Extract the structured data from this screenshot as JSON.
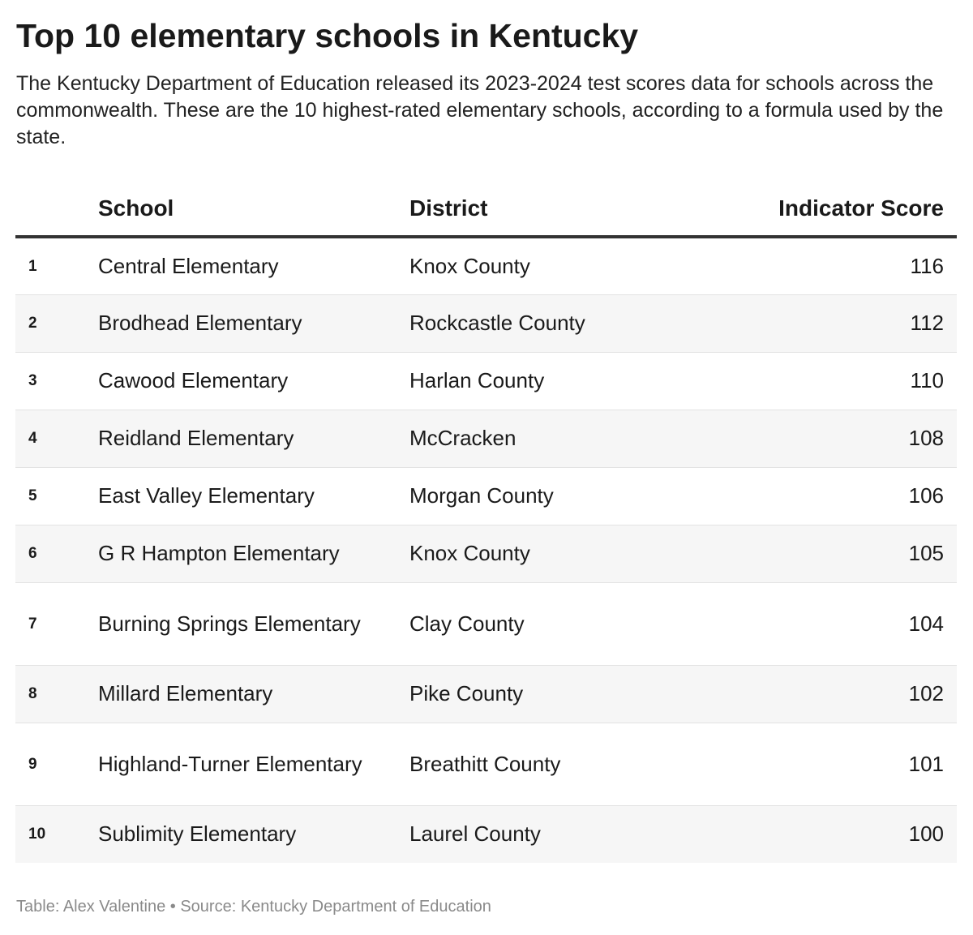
{
  "title": "Top 10 elementary schools in Kentucky",
  "subtitle": "The Kentucky Department of Education released its 2023-2024 test scores data for schools across the commonwealth. These are the 10 highest-rated elementary schools, according to a formula used by the state.",
  "footer": {
    "credit": "Table: Alex Valentine",
    "separator": "•",
    "source": "Source: Kentucky Department of Education"
  },
  "colors": {
    "text": "#1a1a1a",
    "header_rule": "#333333",
    "stripe": "#f6f6f6",
    "footer": "#8a8a8a"
  },
  "chart_data": {
    "type": "table",
    "columns": [
      "",
      "School",
      "District",
      "Indicator Score"
    ],
    "rows": [
      {
        "rank": "1",
        "school": "Central Elementary",
        "district": "Knox County",
        "score": 116
      },
      {
        "rank": "2",
        "school": "Brodhead Elementary",
        "district": "Rockcastle County",
        "score": 112
      },
      {
        "rank": "3",
        "school": "Cawood Elementary",
        "district": "Harlan County",
        "score": 110
      },
      {
        "rank": "4",
        "school": "Reidland Elementary",
        "district": "McCracken",
        "score": 108
      },
      {
        "rank": "5",
        "school": "East Valley Elementary",
        "district": "Morgan County",
        "score": 106
      },
      {
        "rank": "6",
        "school": "G R Hampton Elementary",
        "district": "Knox County",
        "score": 105
      },
      {
        "rank": "7",
        "school": "Burning Springs Elementary",
        "district": "Clay County",
        "score": 104
      },
      {
        "rank": "8",
        "school": "Millard Elementary",
        "district": "Pike County",
        "score": 102
      },
      {
        "rank": "9",
        "school": "Highland-Turner Elementary",
        "district": "Breathitt County",
        "score": 101
      },
      {
        "rank": "10",
        "school": "Sublimity Elementary",
        "district": "Laurel County",
        "score": 100
      }
    ]
  }
}
